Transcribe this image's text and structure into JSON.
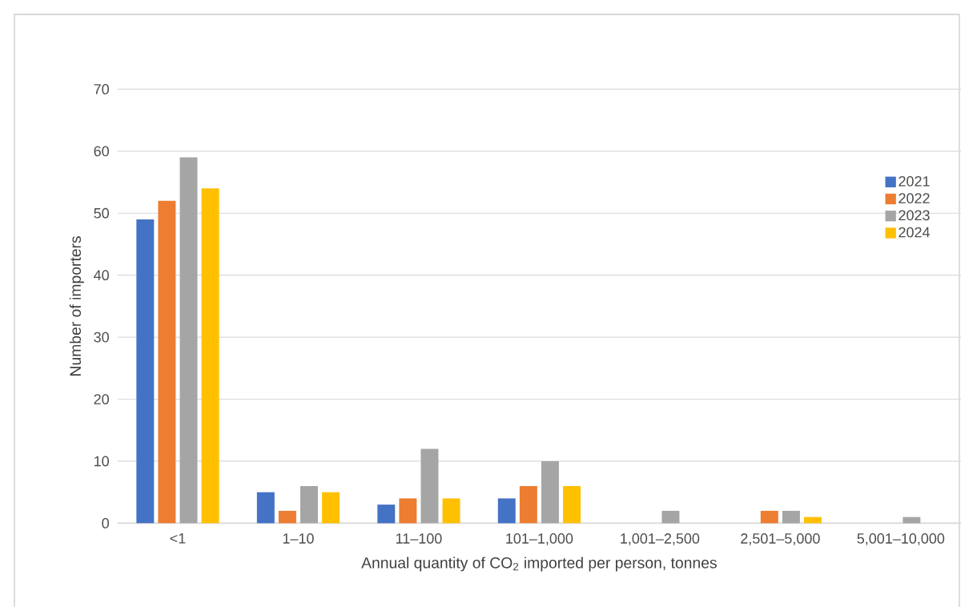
{
  "chart_data": {
    "type": "bar",
    "xlabel": "Annual quantity of CO$_{2}$ imported per person, tonnes",
    "ylabel": "Number of importers",
    "categories": [
      "<1",
      "1–10",
      "11–100",
      "101–1,000",
      "1,001–2,500",
      "2,501–5,000",
      "5,001–10,000"
    ],
    "series": [
      {
        "name": "2021",
        "color": "#4472c4",
        "values": [
          49,
          5,
          3,
          4,
          0,
          0,
          0
        ]
      },
      {
        "name": "2022",
        "color": "#ed7d31",
        "values": [
          52,
          2,
          4,
          6,
          0,
          2,
          0
        ]
      },
      {
        "name": "2023",
        "color": "#a5a5a5",
        "values": [
          59,
          6,
          12,
          10,
          2,
          2,
          1
        ]
      },
      {
        "name": "2024",
        "color": "#ffc000",
        "values": [
          54,
          5,
          4,
          6,
          0,
          1,
          0
        ]
      }
    ],
    "ylim": [
      0,
      70
    ],
    "yticks": [
      0,
      10,
      20,
      30,
      40,
      50,
      60,
      70
    ],
    "grid": "y",
    "legend": "right"
  }
}
